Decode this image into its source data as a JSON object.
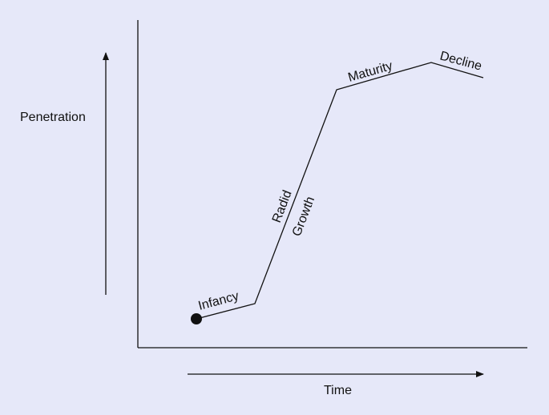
{
  "diagram": {
    "y_label": "Penetration",
    "x_label": "Time",
    "stages": {
      "infancy": "Infancy",
      "growth_line1": "Radid",
      "growth_line2": "Growth",
      "maturity": "Maturity",
      "decline": "Decline"
    },
    "colors": {
      "background": "#e6e8f9",
      "ink": "#111111"
    }
  }
}
